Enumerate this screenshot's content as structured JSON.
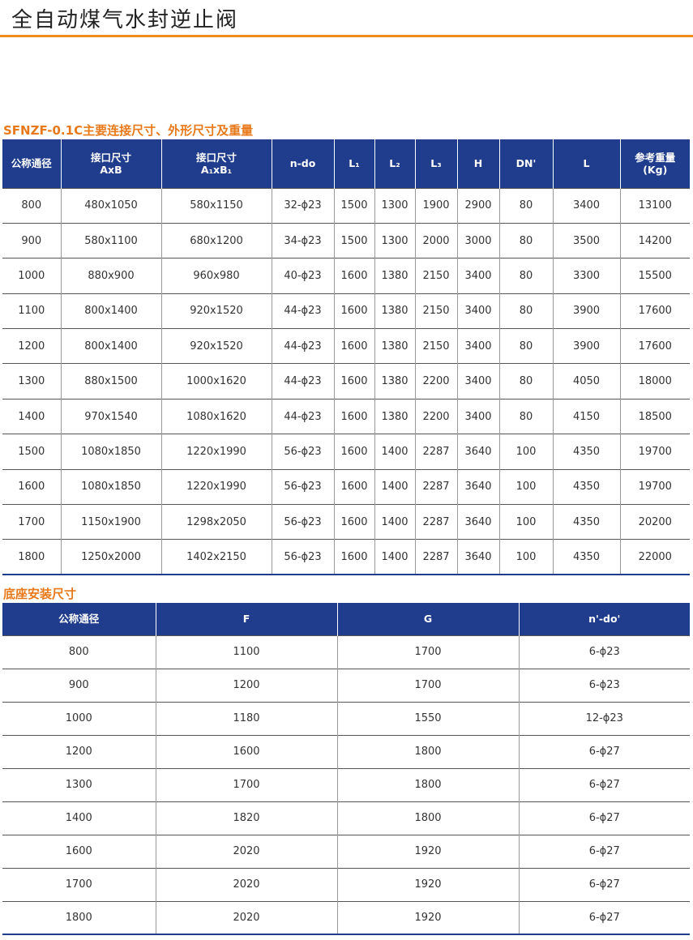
{
  "header": {
    "title": "全自动煤气水封逆止阀"
  },
  "table1": {
    "title": "SFNZF-0.1C主要连接尺寸、外形尺寸及重量",
    "columns": [
      [
        "公称通径"
      ],
      [
        "接口尺寸",
        "AxB"
      ],
      [
        "接口尺寸",
        "A₁xB₁"
      ],
      [
        "n-do"
      ],
      [
        "L₁"
      ],
      [
        "L₂"
      ],
      [
        "L₃"
      ],
      [
        "H"
      ],
      [
        "DN'"
      ],
      [
        "L"
      ],
      [
        "参考重量",
        "(Kg)"
      ]
    ],
    "rows": [
      [
        "800",
        "480x1050",
        "580x1150",
        "32-ϕ23",
        "1500",
        "1300",
        "1900",
        "2900",
        "80",
        "3400",
        "13100"
      ],
      [
        "900",
        "580x1100",
        "680x1200",
        "34-ϕ23",
        "1500",
        "1300",
        "2000",
        "3000",
        "80",
        "3500",
        "14200"
      ],
      [
        "1000",
        "880x900",
        "960x980",
        "40-ϕ23",
        "1600",
        "1380",
        "2150",
        "3400",
        "80",
        "3300",
        "15500"
      ],
      [
        "1100",
        "800x1400",
        "920x1520",
        "44-ϕ23",
        "1600",
        "1380",
        "2150",
        "3400",
        "80",
        "3900",
        "17600"
      ],
      [
        "1200",
        "800x1400",
        "920x1520",
        "44-ϕ23",
        "1600",
        "1380",
        "2150",
        "3400",
        "80",
        "3900",
        "17600"
      ],
      [
        "1300",
        "880x1500",
        "1000x1620",
        "44-ϕ23",
        "1600",
        "1380",
        "2200",
        "3400",
        "80",
        "4050",
        "18000"
      ],
      [
        "1400",
        "970x1540",
        "1080x1620",
        "44-ϕ23",
        "1600",
        "1380",
        "2200",
        "3400",
        "80",
        "4150",
        "18500"
      ],
      [
        "1500",
        "1080x1850",
        "1220x1990",
        "56-ϕ23",
        "1600",
        "1400",
        "2287",
        "3640",
        "100",
        "4350",
        "19700"
      ],
      [
        "1600",
        "1080x1850",
        "1220x1990",
        "56-ϕ23",
        "1600",
        "1400",
        "2287",
        "3640",
        "100",
        "4350",
        "19700"
      ],
      [
        "1700",
        "1150x1900",
        "1298x2050",
        "56-ϕ23",
        "1600",
        "1400",
        "2287",
        "3640",
        "100",
        "4350",
        "20200"
      ],
      [
        "1800",
        "1250x2000",
        "1402x2150",
        "56-ϕ23",
        "1600",
        "1400",
        "2287",
        "3640",
        "100",
        "4350",
        "22000"
      ]
    ]
  },
  "table2": {
    "title": "底座安装尺寸",
    "columns": [
      [
        "公称通径"
      ],
      [
        "F"
      ],
      [
        "G"
      ],
      [
        "n'-do'"
      ]
    ],
    "rows": [
      [
        "800",
        "1100",
        "1700",
        "6-ϕ23"
      ],
      [
        "900",
        "1200",
        "1700",
        "6-ϕ23"
      ],
      [
        "1000",
        "1180",
        "1550",
        "12-ϕ23"
      ],
      [
        "1200",
        "1600",
        "1800",
        "6-ϕ27"
      ],
      [
        "1300",
        "1700",
        "1800",
        "6-ϕ27"
      ],
      [
        "1400",
        "1820",
        "1800",
        "6-ϕ27"
      ],
      [
        "1600",
        "2020",
        "1920",
        "6-ϕ27"
      ],
      [
        "1700",
        "2020",
        "1920",
        "6-ϕ27"
      ],
      [
        "1800",
        "2020",
        "1920",
        "6-ϕ27"
      ]
    ]
  }
}
